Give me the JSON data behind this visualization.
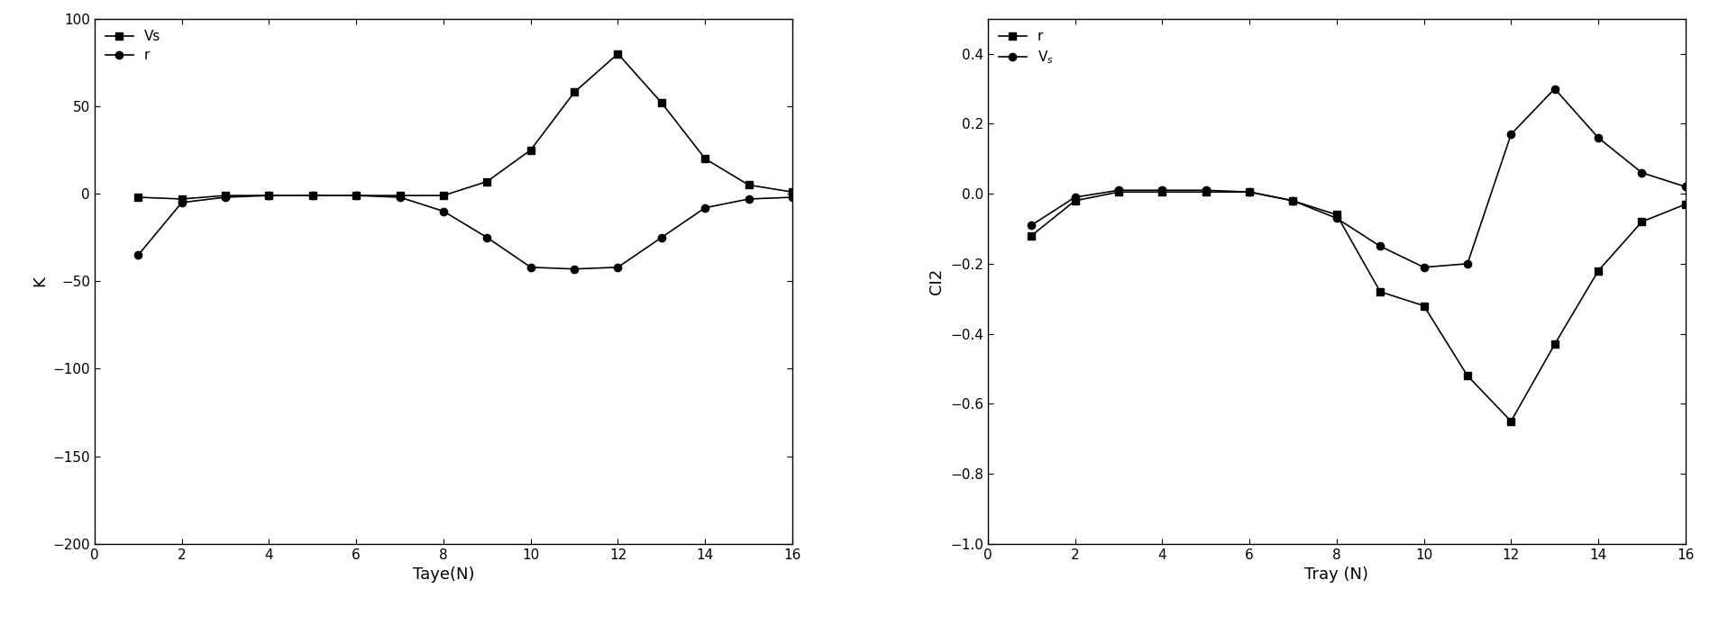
{
  "left_chart": {
    "x": [
      1,
      2,
      3,
      4,
      5,
      6,
      7,
      8,
      9,
      10,
      11,
      12,
      13,
      14,
      15,
      16
    ],
    "Vs": [
      -2,
      -3,
      -1,
      -1,
      -1,
      -1,
      -1,
      -1,
      7,
      25,
      58,
      80,
      52,
      20,
      5,
      1
    ],
    "r": [
      -35,
      -5,
      -2,
      -1,
      -1,
      -1,
      -2,
      -10,
      -25,
      -42,
      -43,
      -42,
      -25,
      -8,
      -3,
      -2
    ],
    "xlabel": "Taye(N)",
    "ylabel": "K",
    "ylim": [
      -200,
      100
    ],
    "yticks": [
      -200,
      -150,
      -100,
      -50,
      0,
      50,
      100
    ],
    "xlim": [
      0,
      16
    ],
    "xticks": [
      0,
      2,
      4,
      6,
      8,
      10,
      12,
      14,
      16
    ]
  },
  "right_chart": {
    "x": [
      1,
      2,
      3,
      4,
      5,
      6,
      7,
      8,
      9,
      10,
      11,
      12,
      13,
      14,
      15,
      16
    ],
    "r": [
      -0.12,
      -0.02,
      0.005,
      0.005,
      0.005,
      0.005,
      -0.02,
      -0.06,
      -0.28,
      -0.32,
      -0.52,
      -0.65,
      -0.43,
      -0.22,
      -0.08,
      -0.03
    ],
    "Vs": [
      -0.09,
      -0.01,
      0.01,
      0.01,
      0.01,
      0.005,
      -0.02,
      -0.07,
      -0.15,
      -0.21,
      -0.2,
      0.17,
      0.3,
      0.16,
      0.06,
      0.02
    ],
    "xlabel": "Tray (N)",
    "ylabel": "CI2",
    "ylim": [
      -1.0,
      0.5
    ],
    "yticks": [
      -1.0,
      -0.8,
      -0.6,
      -0.4,
      -0.2,
      0.0,
      0.2,
      0.4
    ],
    "xlim": [
      0,
      16
    ],
    "xticks": [
      0,
      2,
      4,
      6,
      8,
      10,
      12,
      14,
      16
    ]
  },
  "line_color": "#000000",
  "marker_square": "s",
  "marker_circle": "o",
  "markersize": 6,
  "markerfacecolor": "#000000",
  "linewidth": 1.2,
  "fontsize_label": 13,
  "fontsize_tick": 11,
  "fontsize_legend": 11,
  "background_color": "#ffffff"
}
